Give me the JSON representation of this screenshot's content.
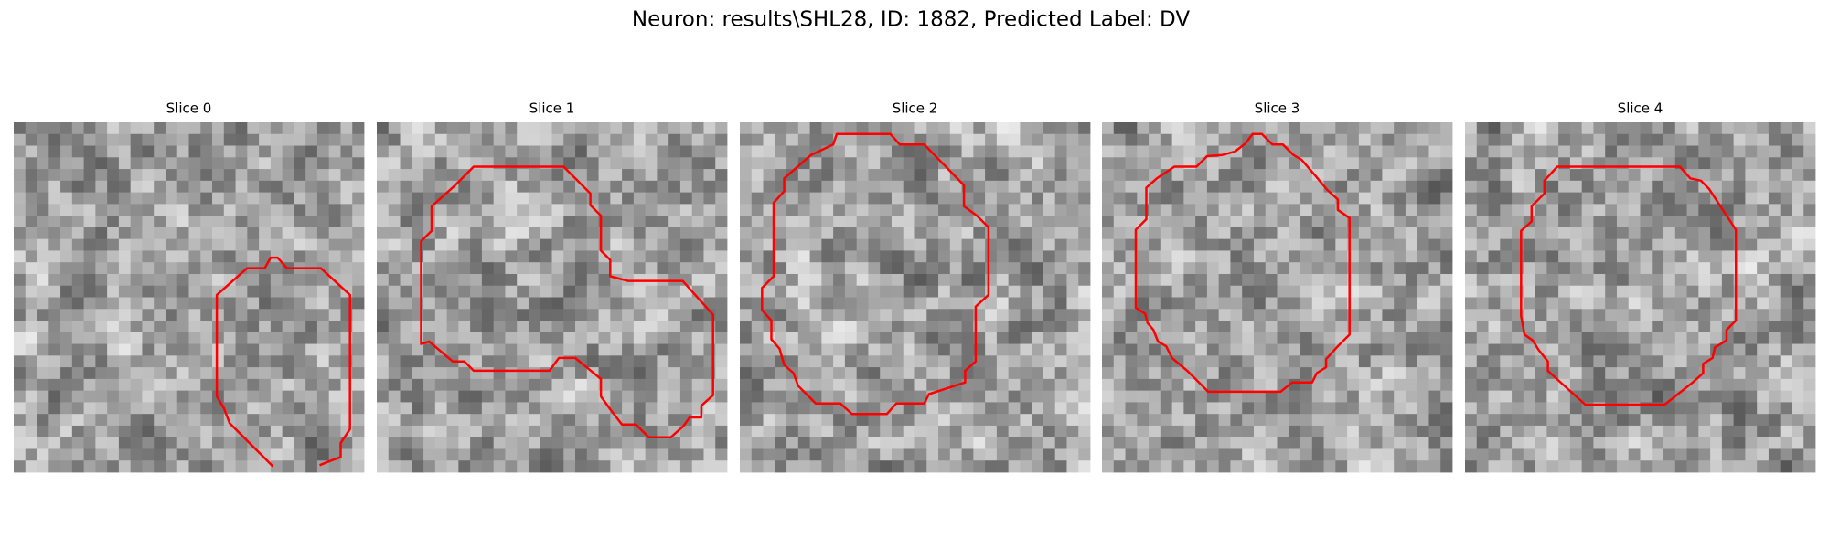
{
  "title": "Neuron: results\\SHL28, ID: 1882, Predicted Label: DV",
  "panels": [
    {
      "title": "Slice 0"
    },
    {
      "title": "Slice 1"
    },
    {
      "title": "Slice 2"
    },
    {
      "title": "Slice 3"
    },
    {
      "title": "Slice 4"
    }
  ]
}
